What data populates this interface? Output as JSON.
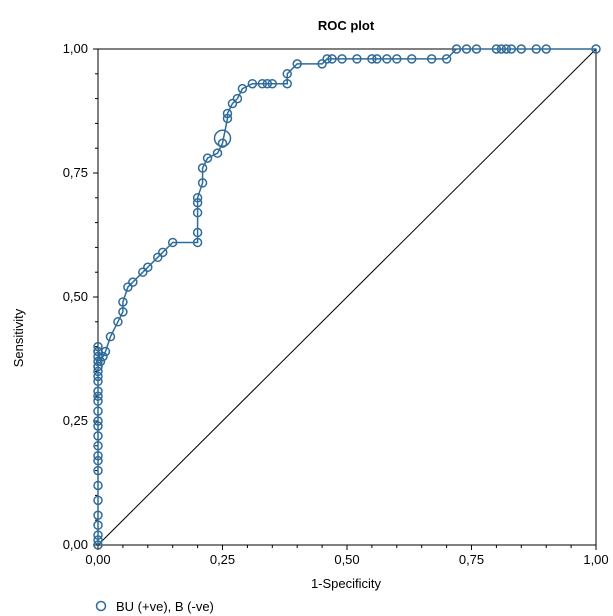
{
  "chart_data": {
    "type": "scatter",
    "title": "ROC plot",
    "xlabel": "1-Specificity",
    "ylabel": "Sensitivity",
    "xlim": [
      0,
      1
    ],
    "ylim": [
      0,
      1
    ],
    "xticks": [
      "0,00",
      "0,25",
      "0,50",
      "0,75",
      "1,00"
    ],
    "yticks": [
      "0,00",
      "0,25",
      "0,50",
      "0,75",
      "1,00"
    ],
    "grid": false,
    "legend_position": "bottom-left",
    "series_color": "#2f6b9a",
    "reference_line_color": "#000000",
    "series": [
      {
        "name": "BU (+ve), B (-ve)",
        "x": [
          0,
          0,
          0,
          0,
          0,
          0,
          0,
          0,
          0,
          0,
          0,
          0,
          0,
          0,
          0,
          0,
          0,
          0,
          0,
          0,
          0,
          0,
          0,
          0,
          0,
          0,
          0,
          0,
          0.005,
          0.01,
          0.015,
          0.025,
          0.04,
          0.05,
          0.05,
          0.06,
          0.07,
          0.09,
          0.1,
          0.12,
          0.13,
          0.15,
          0.2,
          0.2,
          0.2,
          0.2,
          0.2,
          0.21,
          0.21,
          0.22,
          0.24,
          0.25,
          0.26,
          0.26,
          0.27,
          0.28,
          0.29,
          0.31,
          0.33,
          0.34,
          0.35,
          0.38,
          0.38,
          0.4,
          0.45,
          0.46,
          0.47,
          0.49,
          0.52,
          0.55,
          0.56,
          0.58,
          0.6,
          0.63,
          0.67,
          0.7,
          0.72,
          0.74,
          0.76,
          0.8,
          0.81,
          0.82,
          0.83,
          0.85,
          0.88,
          0.9,
          1.0
        ],
        "y": [
          0,
          0.01,
          0.02,
          0.04,
          0.06,
          0.09,
          0.12,
          0.15,
          0.17,
          0.18,
          0.2,
          0.22,
          0.24,
          0.25,
          0.27,
          0.29,
          0.3,
          0.31,
          0.33,
          0.34,
          0.35,
          0.36,
          0.37,
          0.38,
          0.39,
          0.36,
          0.39,
          0.4,
          0.37,
          0.38,
          0.39,
          0.42,
          0.45,
          0.47,
          0.49,
          0.52,
          0.53,
          0.55,
          0.56,
          0.58,
          0.59,
          0.61,
          0.61,
          0.63,
          0.67,
          0.69,
          0.7,
          0.73,
          0.76,
          0.78,
          0.79,
          0.81,
          0.86,
          0.87,
          0.89,
          0.9,
          0.92,
          0.93,
          0.93,
          0.93,
          0.93,
          0.93,
          0.95,
          0.97,
          0.97,
          0.98,
          0.98,
          0.98,
          0.98,
          0.98,
          0.98,
          0.98,
          0.98,
          0.98,
          0.98,
          0.98,
          1.0,
          1.0,
          1.0,
          1.0,
          1.0,
          1.0,
          1.0,
          1.0,
          1.0,
          1.0,
          1.0
        ]
      }
    ],
    "highlight_point": {
      "x": 0.25,
      "y": 0.82
    }
  }
}
